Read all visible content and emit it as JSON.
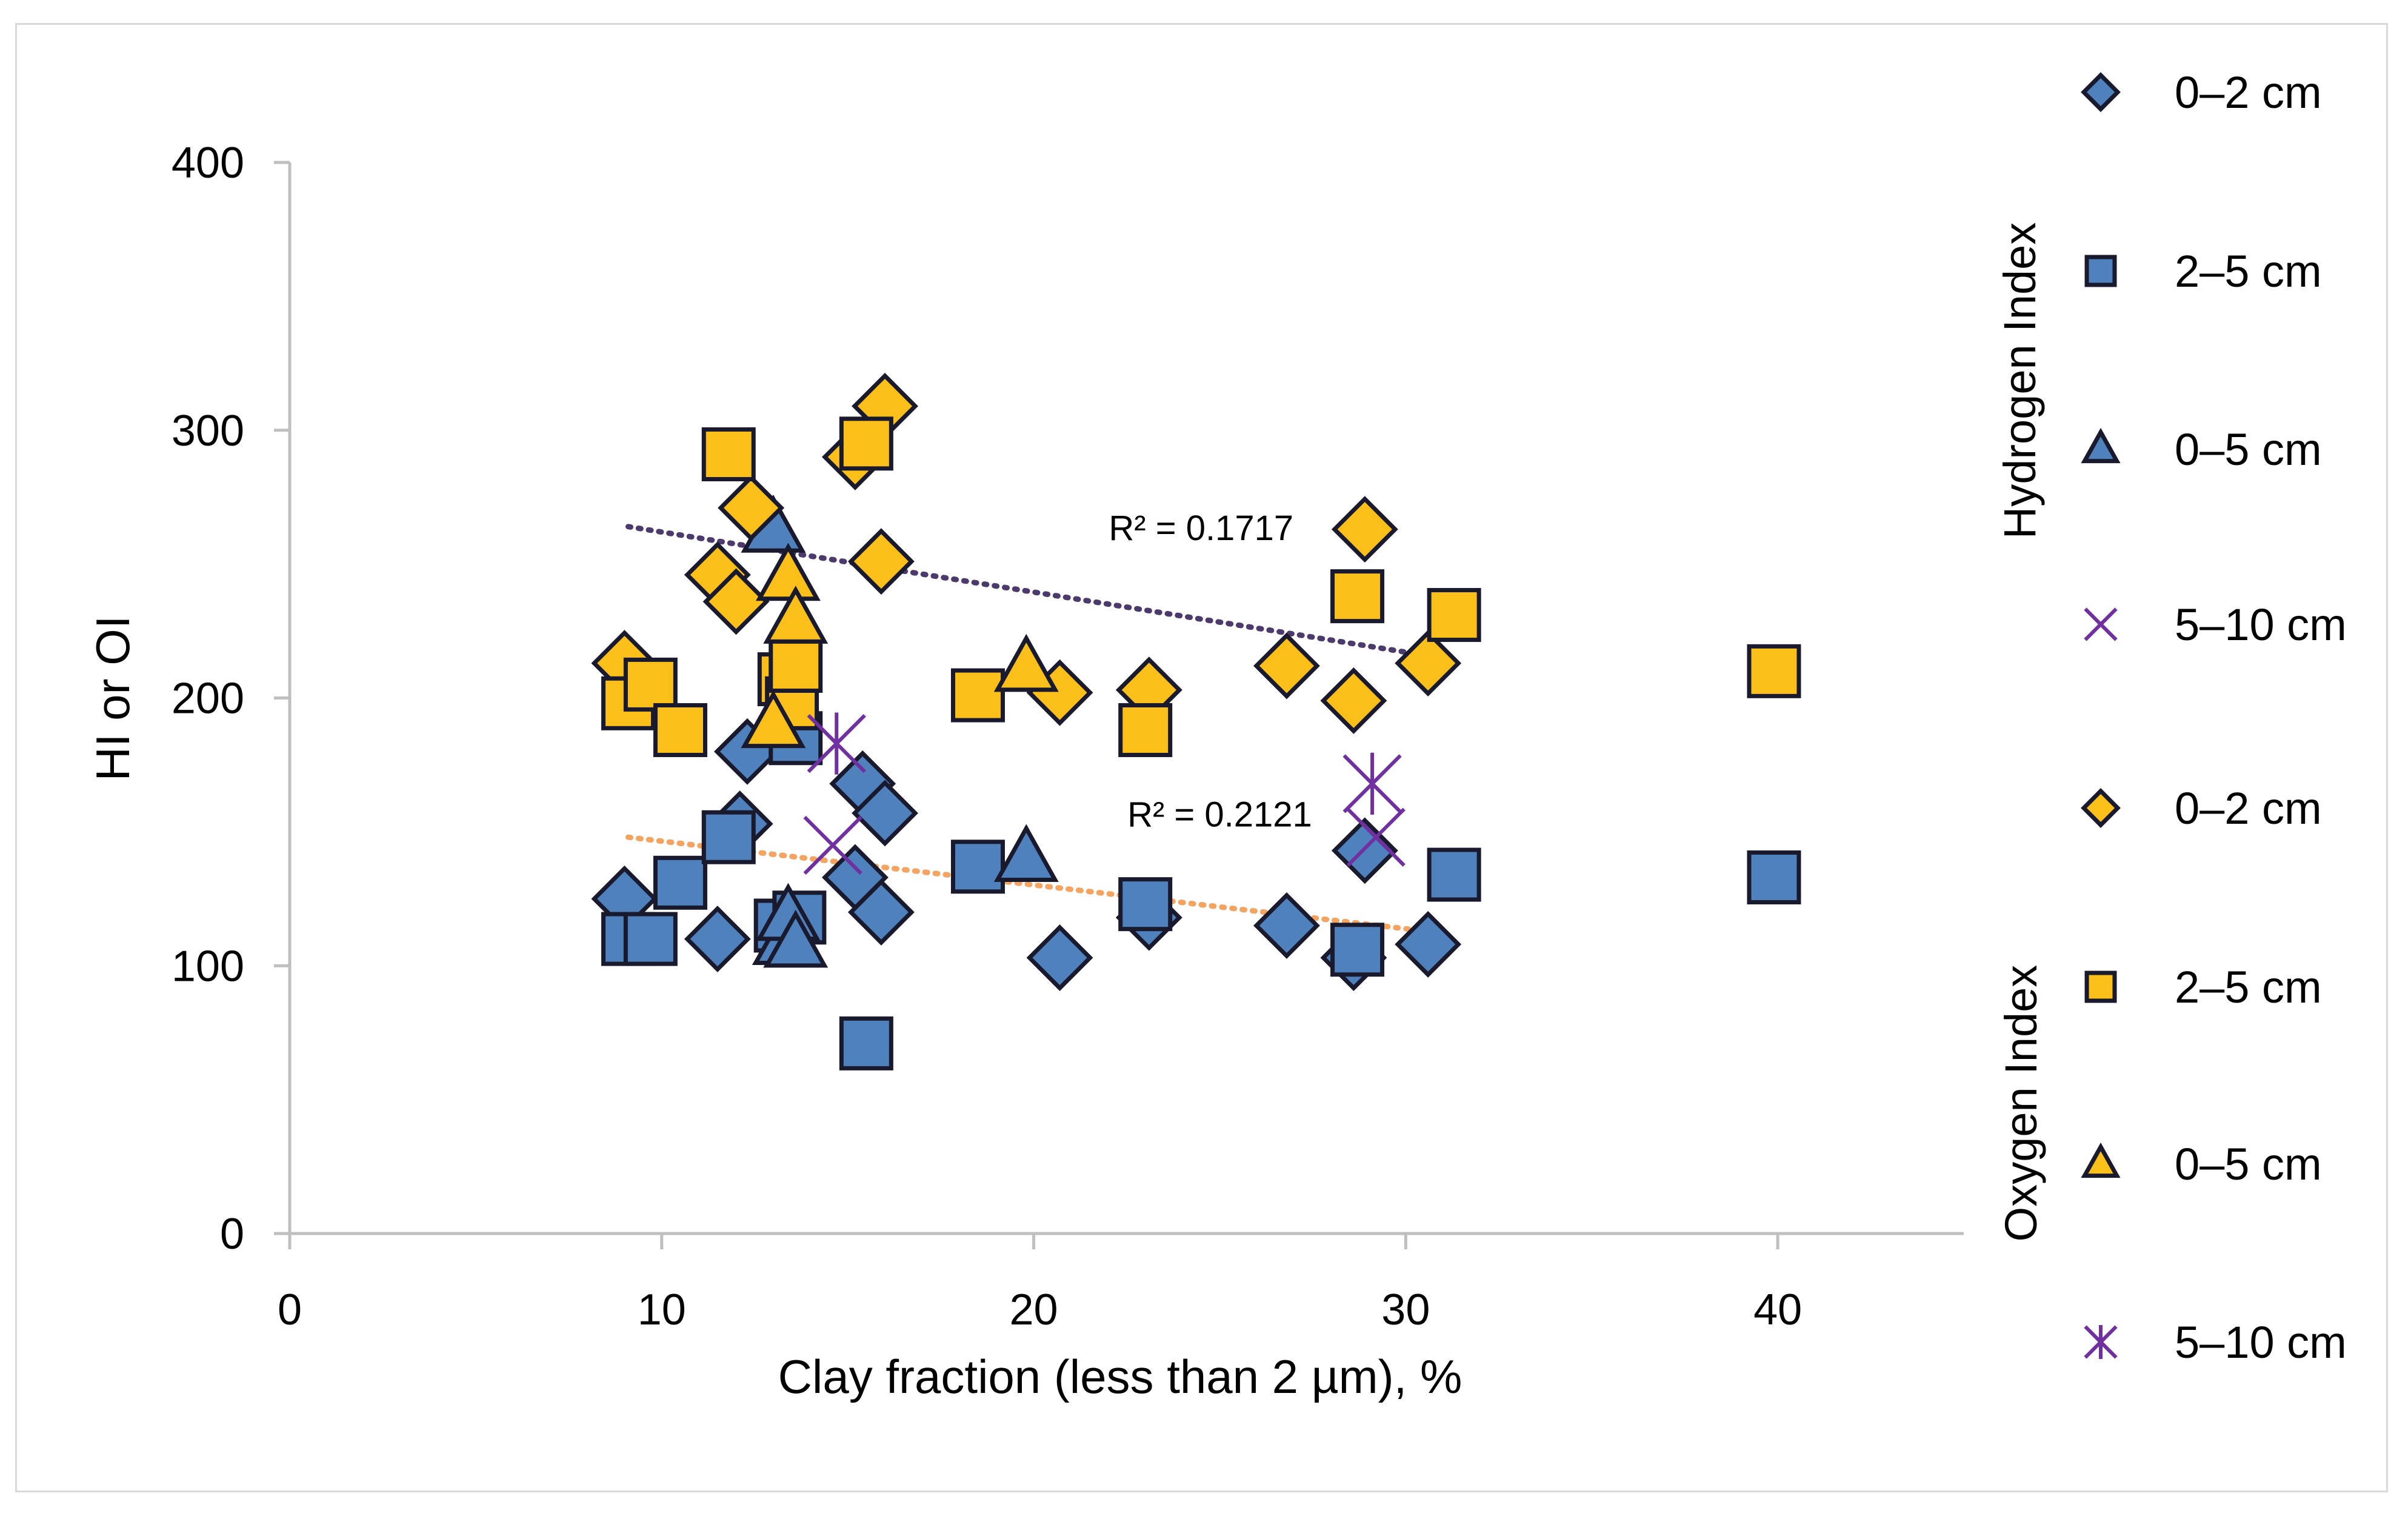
{
  "chart_data": {
    "type": "scatter",
    "title": "",
    "xlabel": "Clay fraction (less than 2 µm), %",
    "ylabel": "HI or OI",
    "xlim": [
      0,
      45
    ],
    "ylim": [
      0,
      400
    ],
    "x_ticks": [
      "0",
      "10",
      "20",
      "30",
      "40"
    ],
    "x_tick_values": [
      0,
      10,
      20,
      30,
      40
    ],
    "y_ticks": [
      "0",
      "100",
      "200",
      "300",
      "400"
    ],
    "y_tick_values": [
      0,
      100,
      200,
      300,
      400
    ],
    "grid": false,
    "legend_position": "right",
    "legend_groups": [
      {
        "label": "Hydrogen Index",
        "entries": [
          0,
          1,
          2,
          3
        ]
      },
      {
        "label": "Oxygen Index",
        "entries": [
          4,
          5,
          6,
          7
        ]
      }
    ],
    "colors": {
      "blue": "#4f81bd",
      "orange": "#fbbf19",
      "purple": "#7030a0",
      "outline": "#1a1a2e",
      "trend_hi": "#4b3a6b",
      "trend_oi": "#f4a460"
    },
    "series": [
      {
        "name": "0–2 cm",
        "group": "Hydrogen Index",
        "marker": "diamond",
        "color": "#4f81bd",
        "points": [
          [
            9.0,
            125
          ],
          [
            11.5,
            110
          ],
          [
            12.1,
            153
          ],
          [
            12.3,
            180
          ],
          [
            15.2,
            133
          ],
          [
            15.4,
            168
          ],
          [
            15.9,
            120
          ],
          [
            16.0,
            157
          ],
          [
            20.7,
            103
          ],
          [
            23.1,
            118
          ],
          [
            26.8,
            115
          ],
          [
            28.6,
            103
          ],
          [
            28.9,
            143
          ],
          [
            30.6,
            108
          ]
        ]
      },
      {
        "name": "2–5 cm",
        "group": "Hydrogen Index",
        "marker": "square",
        "color": "#4f81bd",
        "points": [
          [
            9.1,
            110
          ],
          [
            9.7,
            110
          ],
          [
            10.5,
            131
          ],
          [
            11.8,
            148
          ],
          [
            13.2,
            115
          ],
          [
            13.6,
            185
          ],
          [
            13.7,
            118
          ],
          [
            15.5,
            71
          ],
          [
            18.5,
            137
          ],
          [
            23.0,
            123
          ],
          [
            28.7,
            106
          ],
          [
            31.3,
            134
          ],
          [
            39.9,
            133
          ]
        ]
      },
      {
        "name": "0–5 cm",
        "group": "Hydrogen Index",
        "marker": "triangle",
        "color": "#4f81bd",
        "points": [
          [
            13.0,
            263
          ],
          [
            13.3,
            109
          ],
          [
            13.4,
            118
          ],
          [
            13.6,
            108
          ],
          [
            19.8,
            140
          ]
        ]
      },
      {
        "name": "5–10 cm",
        "group": "Hydrogen Index",
        "marker": "x",
        "color": "#7030a0",
        "points": [
          [
            14.6,
            145
          ],
          [
            29.2,
            148
          ]
        ]
      },
      {
        "name": "0–2 cm",
        "group": "Oxygen Index",
        "marker": "diamond",
        "color": "#fbbf19",
        "points": [
          [
            9.0,
            213
          ],
          [
            11.5,
            246
          ],
          [
            12.0,
            236
          ],
          [
            12.4,
            271
          ],
          [
            15.2,
            290
          ],
          [
            15.9,
            251
          ],
          [
            16.0,
            309
          ],
          [
            20.7,
            202
          ],
          [
            23.1,
            203
          ],
          [
            26.8,
            212
          ],
          [
            28.6,
            199
          ],
          [
            28.9,
            263
          ],
          [
            30.6,
            213
          ]
        ]
      },
      {
        "name": "2–5 cm",
        "group": "Oxygen Index",
        "marker": "square",
        "color": "#fbbf19",
        "points": [
          [
            9.1,
            198
          ],
          [
            9.7,
            205
          ],
          [
            10.5,
            188
          ],
          [
            11.8,
            291
          ],
          [
            13.3,
            207
          ],
          [
            13.5,
            198
          ],
          [
            13.6,
            212
          ],
          [
            15.5,
            295
          ],
          [
            18.5,
            201
          ],
          [
            23.0,
            188
          ],
          [
            28.7,
            238
          ],
          [
            31.3,
            231
          ],
          [
            39.9,
            210
          ]
        ]
      },
      {
        "name": "0–5 cm",
        "group": "Oxygen Index",
        "marker": "triangle",
        "color": "#fbbf19",
        "points": [
          [
            13.0,
            190
          ],
          [
            13.4,
            245
          ],
          [
            13.6,
            229
          ],
          [
            19.8,
            211
          ]
        ]
      },
      {
        "name": "5–10 cm",
        "group": "Oxygen Index",
        "marker": "asterisk",
        "color": "#7030a0",
        "points": [
          [
            14.7,
            183
          ],
          [
            29.1,
            168
          ]
        ]
      }
    ],
    "trendlines": [
      {
        "label": "R² = 0.1717",
        "x0": 9.1,
        "y0": 264,
        "x1": 30.5,
        "y1": 216,
        "color": "#4b3a6b",
        "label_x": 24.5,
        "label_y": 259
      },
      {
        "label": "R² = 0.2121",
        "x0": 9.1,
        "y0": 148,
        "x1": 30.5,
        "y1": 113,
        "color": "#f4a460",
        "label_x": 25.0,
        "label_y": 152
      }
    ]
  }
}
